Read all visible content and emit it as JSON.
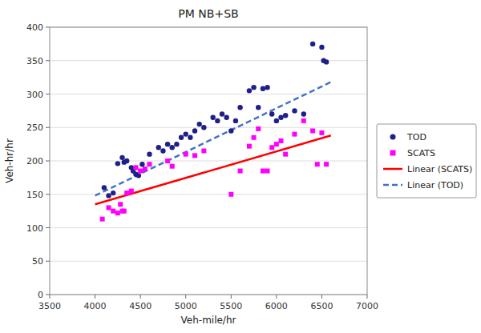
{
  "chart_data": {
    "type": "scatter",
    "title": "PM NB+SB",
    "xlabel": "Veh-mile/hr",
    "ylabel": "Veh-hr/hr",
    "xlim": [
      3500,
      7000
    ],
    "ylim": [
      0,
      400
    ],
    "xticks": [
      3500,
      4000,
      4500,
      5000,
      5500,
      6000,
      6500,
      7000
    ],
    "yticks": [
      0,
      50,
      100,
      150,
      200,
      250,
      300,
      350,
      400
    ],
    "grid": "y",
    "legend": "right",
    "series": [
      {
        "name": "TOD",
        "type": "scatter",
        "marker": "circle",
        "color": "#1F1F8B",
        "x": [
          4100,
          4150,
          4200,
          4250,
          4300,
          4320,
          4350,
          4400,
          4420,
          4450,
          4480,
          4520,
          4600,
          4700,
          4750,
          4800,
          4850,
          4900,
          4950,
          5000,
          5050,
          5100,
          5150,
          5200,
          5300,
          5350,
          5400,
          5450,
          5500,
          5550,
          5600,
          5700,
          5750,
          5800,
          5850,
          5900,
          5950,
          6000,
          6050,
          6100,
          6200,
          6300,
          6400,
          6500,
          6520,
          6550
        ],
        "values": [
          160,
          148,
          152,
          196,
          205,
          198,
          200,
          190,
          185,
          180,
          178,
          195,
          210,
          220,
          215,
          225,
          220,
          225,
          235,
          240,
          235,
          245,
          255,
          250,
          265,
          260,
          270,
          265,
          245,
          260,
          280,
          305,
          310,
          280,
          308,
          310,
          270,
          260,
          265,
          268,
          275,
          270,
          375,
          370,
          350,
          348
        ]
      },
      {
        "name": "SCATS",
        "type": "scatter",
        "marker": "square",
        "color": "#FF00FF",
        "x": [
          4080,
          4150,
          4200,
          4250,
          4280,
          4300,
          4320,
          4350,
          4400,
          4450,
          4500,
          4550,
          4600,
          4800,
          4850,
          5000,
          5100,
          5200,
          5500,
          5600,
          5700,
          5750,
          5800,
          5850,
          5900,
          5950,
          6000,
          6050,
          6100,
          6200,
          6300,
          6400,
          6450,
          6500,
          6550
        ],
        "values": [
          113,
          130,
          125,
          122,
          135,
          125,
          125,
          152,
          155,
          190,
          185,
          188,
          195,
          200,
          192,
          210,
          208,
          215,
          150,
          185,
          222,
          235,
          248,
          185,
          185,
          220,
          225,
          230,
          210,
          240,
          260,
          245,
          195,
          242,
          195
        ]
      },
      {
        "name": "Linear (SCATS)",
        "type": "line",
        "line_style": "solid",
        "color": "#FF0000",
        "x": [
          4000,
          6600
        ],
        "values": [
          135,
          238
        ]
      },
      {
        "name": "Linear (TOD)",
        "type": "line",
        "line_style": "dashed",
        "color": "#4472C4",
        "x": [
          4000,
          6600
        ],
        "values": [
          148,
          318
        ]
      }
    ]
  }
}
